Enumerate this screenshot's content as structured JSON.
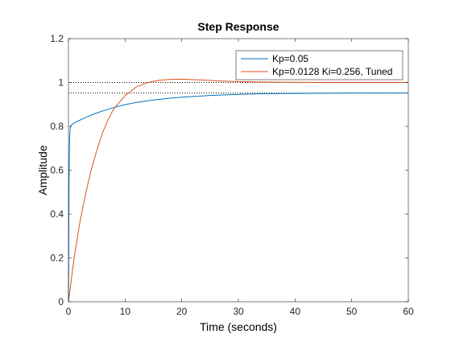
{
  "chart_data": {
    "type": "line",
    "title": "Step Response",
    "xlabel": "Time (seconds)",
    "ylabel": "Amplitude",
    "xlim": [
      0,
      60
    ],
    "ylim": [
      0,
      1.2
    ],
    "xticks": [
      0,
      10,
      20,
      30,
      40,
      50,
      60
    ],
    "yticks": [
      0,
      0.2,
      0.4,
      0.6,
      0.8,
      1,
      1.2
    ],
    "xtick_labels": [
      "0",
      "10",
      "20",
      "30",
      "40",
      "50",
      "60"
    ],
    "ytick_labels": [
      "0",
      "0.2",
      "0.4",
      "0.6",
      "0.8",
      "1",
      "1.2"
    ],
    "grid": false,
    "legend_position": "top-right",
    "reference_lines": [
      {
        "y": 1.0,
        "style": "dotted",
        "color": "#000000"
      },
      {
        "y": 0.952,
        "style": "dotted",
        "color": "#000000"
      }
    ],
    "series": [
      {
        "name": "Kp=0.05",
        "color": "#0072BD",
        "x": [
          0,
          0.05,
          0.1,
          0.15,
          0.2,
          0.3,
          0.4,
          0.5,
          0.7,
          1,
          1.5,
          2,
          3,
          4,
          5,
          6,
          8,
          10,
          12,
          15,
          18,
          20,
          25,
          30,
          35,
          40,
          45,
          50,
          55,
          60
        ],
        "y": [
          0,
          0.3,
          0.52,
          0.66,
          0.74,
          0.79,
          0.8,
          0.805,
          0.81,
          0.815,
          0.822,
          0.828,
          0.84,
          0.851,
          0.861,
          0.87,
          0.886,
          0.899,
          0.909,
          0.92,
          0.929,
          0.933,
          0.941,
          0.946,
          0.949,
          0.95,
          0.951,
          0.952,
          0.952,
          0.952
        ]
      },
      {
        "name": "Kp=0.0128 Ki=0.256, Tuned",
        "color": "#D95319",
        "x": [
          0,
          0.5,
          1,
          2,
          3,
          4,
          5,
          6,
          7,
          8,
          9,
          10,
          11,
          12,
          13,
          14,
          15,
          16,
          18,
          20,
          22,
          24,
          26,
          28,
          30,
          35,
          40,
          45,
          50,
          55,
          60
        ],
        "y": [
          0,
          0.1,
          0.2,
          0.36,
          0.49,
          0.6,
          0.69,
          0.77,
          0.83,
          0.88,
          0.91,
          0.94,
          0.96,
          0.98,
          0.99,
          1.0,
          1.005,
          1.01,
          1.014,
          1.015,
          1.013,
          1.011,
          1.008,
          1.006,
          1.004,
          1.002,
          1.001,
          1.0,
          1.0,
          1.0,
          1.0
        ]
      }
    ]
  }
}
